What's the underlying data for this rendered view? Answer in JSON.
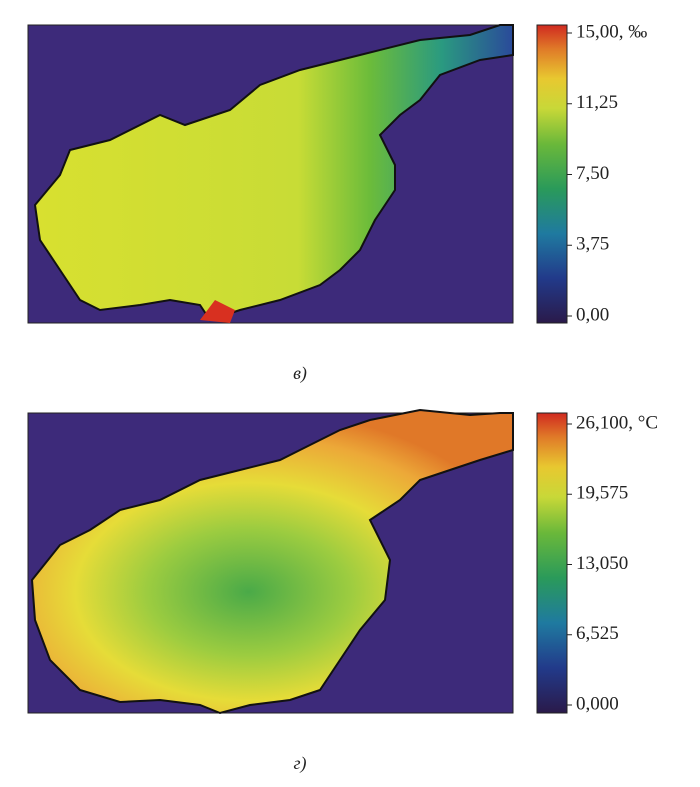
{
  "panels": [
    {
      "label": "в)",
      "colorbar": {
        "lim": [
          0,
          15
        ],
        "ticks": [
          {
            "value": 0,
            "label": "0,00"
          },
          {
            "value": 3.75,
            "label": "3,75"
          },
          {
            "value": 7.5,
            "label": "7,50"
          },
          {
            "value": 11.25,
            "label": "11,25"
          },
          {
            "value": 15,
            "label": "15,00, ‰"
          }
        ]
      }
    },
    {
      "label": "г)",
      "colorbar": {
        "lim": [
          0,
          26.1
        ],
        "ticks": [
          {
            "value": 0,
            "label": "0,000"
          },
          {
            "value": 6.525,
            "label": "6,525"
          },
          {
            "value": 13.05,
            "label": "13,050"
          },
          {
            "value": 19.575,
            "label": "19,575"
          },
          {
            "value": 26.1,
            "label": "26,100, °C"
          }
        ]
      }
    }
  ]
}
